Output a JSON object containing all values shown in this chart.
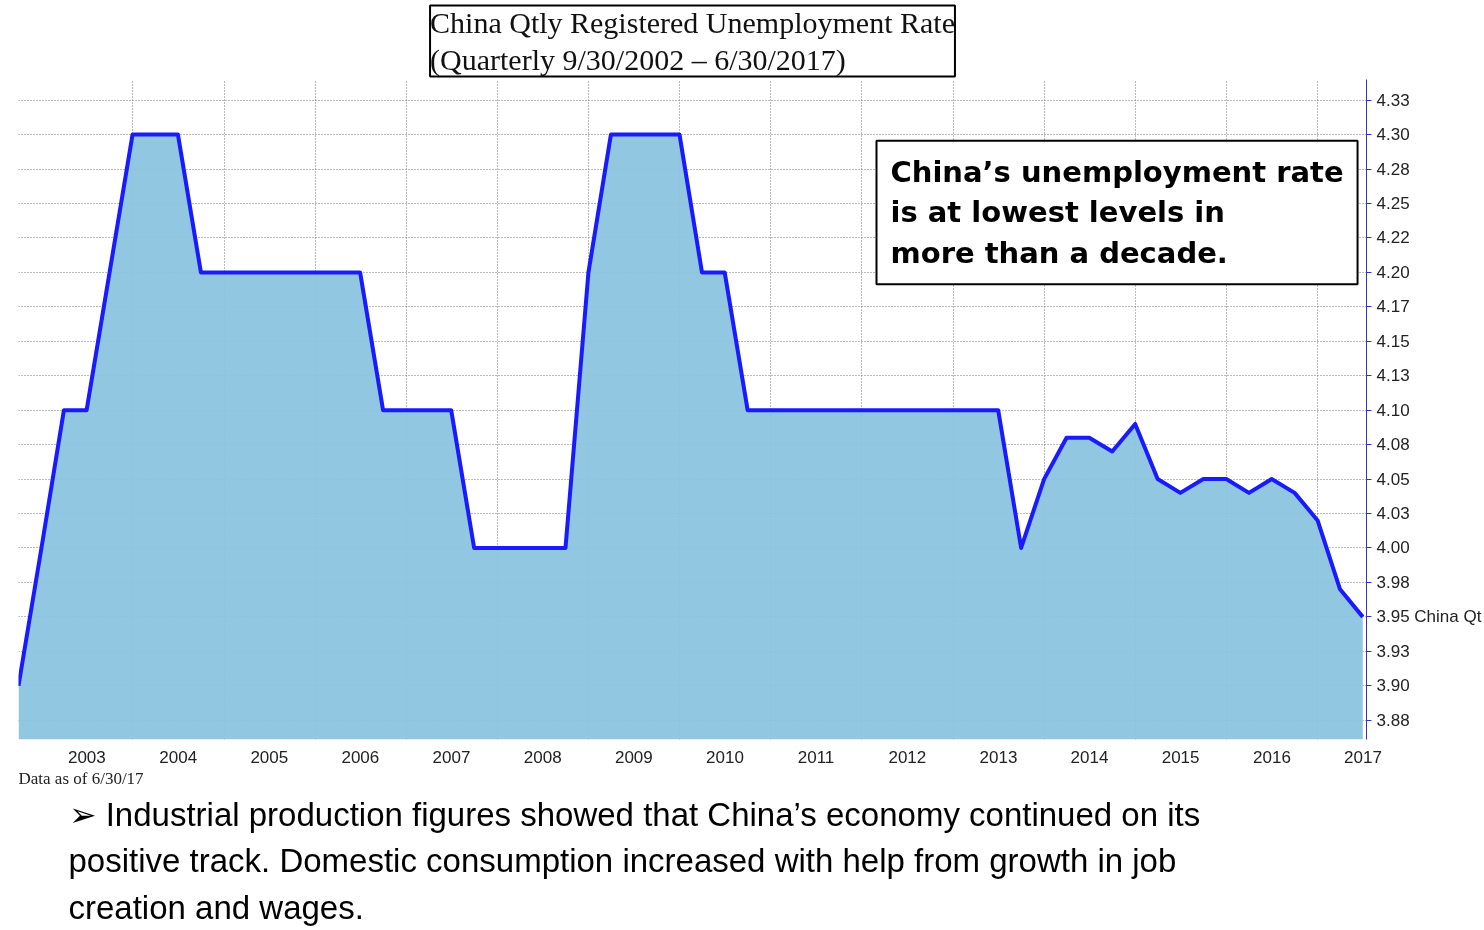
{
  "chart_data": {
    "type": "area",
    "title": "China Qtly Registered Unemployment Rate",
    "subtitle": "(Quarterly 9/30/2002 – 6/30/2017)",
    "x": [
      "2002-09-30",
      "2002-12-31",
      "2003-03-31",
      "2003-06-30",
      "2003-09-30",
      "2003-12-31",
      "2004-03-31",
      "2004-06-30",
      "2004-09-30",
      "2004-12-31",
      "2005-03-31",
      "2005-06-30",
      "2005-09-30",
      "2005-12-31",
      "2006-03-31",
      "2006-06-30",
      "2006-09-30",
      "2006-12-31",
      "2007-03-31",
      "2007-06-30",
      "2007-09-30",
      "2007-12-31",
      "2008-03-31",
      "2008-06-30",
      "2008-09-30",
      "2008-12-31",
      "2009-03-31",
      "2009-06-30",
      "2009-09-30",
      "2009-12-31",
      "2010-03-31",
      "2010-06-30",
      "2010-09-30",
      "2010-12-31",
      "2011-03-31",
      "2011-06-30",
      "2011-09-30",
      "2011-12-31",
      "2012-03-31",
      "2012-06-30",
      "2012-09-30",
      "2012-12-31",
      "2013-03-31",
      "2013-06-30",
      "2013-09-30",
      "2013-12-31",
      "2014-03-31",
      "2014-06-30",
      "2014-09-30",
      "2014-12-31",
      "2015-03-31",
      "2015-06-30",
      "2015-09-30",
      "2015-12-31",
      "2016-03-31",
      "2016-06-30",
      "2016-09-30",
      "2016-12-31",
      "2017-03-31",
      "2017-06-30"
    ],
    "series": [
      {
        "color": "#1a1aff",
        "values": [
          3.9,
          4.0,
          4.1,
          4.1,
          4.2,
          4.3,
          4.3,
          4.3,
          4.2,
          4.2,
          4.2,
          4.2,
          4.2,
          4.2,
          4.2,
          4.2,
          4.1,
          4.1,
          4.1,
          4.1,
          4.0,
          4.0,
          4.0,
          4.0,
          4.0,
          4.2,
          4.3,
          4.3,
          4.3,
          4.3,
          4.2,
          4.2,
          4.1,
          4.1,
          4.1,
          4.1,
          4.1,
          4.1,
          4.1,
          4.1,
          4.1,
          4.1,
          4.1,
          4.1,
          4.0,
          4.05,
          4.08,
          4.08,
          4.07,
          4.09,
          4.05,
          4.04,
          4.05,
          4.05,
          4.04,
          4.05,
          4.04,
          4.02,
          3.97,
          3.95
        ]
      }
    ],
    "xlim": [
      "2002-09-30",
      "2017-07-15"
    ],
    "xticks": [
      {
        "value": "2003-07-01",
        "label": "2003"
      },
      {
        "value": "2004-07-01",
        "label": "2004"
      },
      {
        "value": "2005-07-01",
        "label": "2005"
      },
      {
        "value": "2006-07-01",
        "label": "2006"
      },
      {
        "value": "2007-07-01",
        "label": "2007"
      },
      {
        "value": "2008-07-01",
        "label": "2008"
      },
      {
        "value": "2009-07-01",
        "label": "2009"
      },
      {
        "value": "2010-07-01",
        "label": "2010"
      },
      {
        "value": "2011-07-01",
        "label": "2011"
      },
      {
        "value": "2012-07-01",
        "label": "2012"
      },
      {
        "value": "2013-07-01",
        "label": "2013"
      },
      {
        "value": "2014-07-01",
        "label": "2014"
      },
      {
        "value": "2015-07-01",
        "label": "2015"
      },
      {
        "value": "2016-07-01",
        "label": "2016"
      },
      {
        "value": "2017-07-01",
        "label": "2017"
      },
      {
        "value": "2004-01-01",
        "label": null
      },
      {
        "value": "2005-01-01",
        "label": null
      },
      {
        "value": "2006-01-01",
        "label": null
      },
      {
        "value": "2007-01-01",
        "label": null
      },
      {
        "value": "2008-01-01",
        "label": null
      },
      {
        "value": "2009-01-01",
        "label": null
      },
      {
        "value": "2010-01-01",
        "label": null
      },
      {
        "value": "2011-01-01",
        "label": null
      },
      {
        "value": "2012-01-01",
        "label": null
      },
      {
        "value": "2013-01-01",
        "label": null
      },
      {
        "value": "2014-01-01",
        "label": null
      },
      {
        "value": "2015-01-01",
        "label": null
      },
      {
        "value": "2016-01-01",
        "label": null
      },
      {
        "value": "2017-01-01",
        "label": null
      }
    ],
    "ylim": [
      3.861,
      4.34
    ],
    "yticks": [
      {
        "value": 3.875,
        "label": "3.88"
      },
      {
        "value": 3.9,
        "label": "3.90"
      },
      {
        "value": 3.925,
        "label": "3.93"
      },
      {
        "value": 3.95,
        "label": "3.95 China Qt"
      },
      {
        "value": 3.975,
        "label": "3.98"
      },
      {
        "value": 4.0,
        "label": "4.00"
      },
      {
        "value": 4.025,
        "label": "4.03"
      },
      {
        "value": 4.05,
        "label": "4.05"
      },
      {
        "value": 4.075,
        "label": "4.08"
      },
      {
        "value": 4.1,
        "label": "4.10"
      },
      {
        "value": 4.125,
        "label": "4.13"
      },
      {
        "value": 4.15,
        "label": "4.15"
      },
      {
        "value": 4.175,
        "label": "4.17"
      },
      {
        "value": 4.2,
        "label": "4.20"
      },
      {
        "value": 4.225,
        "label": "4.22"
      },
      {
        "value": 4.25,
        "label": "4.25"
      },
      {
        "value": 4.275,
        "label": "4.28"
      },
      {
        "value": 4.3,
        "label": "4.30"
      },
      {
        "value": 4.325,
        "label": "4.33"
      }
    ],
    "grid": true,
    "annotations": [
      "China’s unemployment rate is at lowest levels in more than a decade.",
      "Data as of 6/30/17",
      "➢ Industrial production figures showed that China’s economy continued on its positive track. Domestic consumption increased with help from growth in job creation and wages."
    ]
  }
}
